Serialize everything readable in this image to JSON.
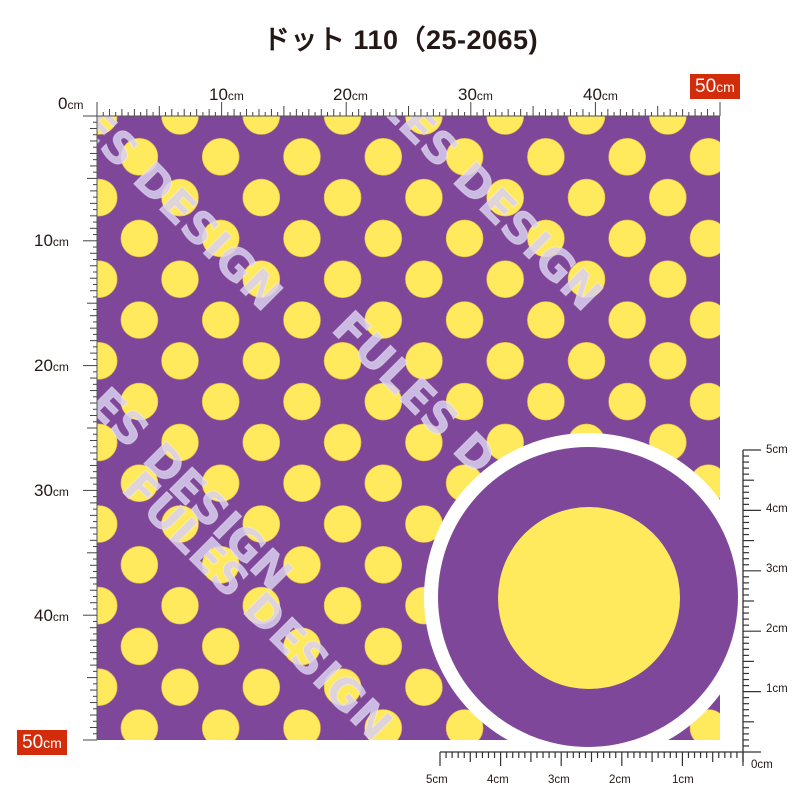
{
  "title": "ドット110（25-2065)",
  "title_display": "ドット 110（25-2065)",
  "pattern": {
    "name": "ドット110",
    "code": "25-2065",
    "background_color": "#7f479a",
    "dot_color": "#ffe95c",
    "watermark_text": "FULES DESIGN",
    "watermark_color": "#d8d0ee"
  },
  "top_ruler": {
    "labels": [
      {
        "value": "0",
        "unit": "cm"
      },
      {
        "value": "10",
        "unit": "cm"
      },
      {
        "value": "20",
        "unit": "cm"
      },
      {
        "value": "30",
        "unit": "cm"
      },
      {
        "value": "40",
        "unit": "cm"
      }
    ],
    "end_badge": {
      "value": "50",
      "unit": "cm"
    }
  },
  "left_ruler": {
    "labels": [
      {
        "value": "10",
        "unit": "cm"
      },
      {
        "value": "20",
        "unit": "cm"
      },
      {
        "value": "30",
        "unit": "cm"
      },
      {
        "value": "40",
        "unit": "cm"
      }
    ],
    "end_badge": {
      "value": "50",
      "unit": "cm"
    }
  },
  "detail_right_ruler": {
    "labels": [
      "5cm",
      "4cm",
      "3cm",
      "2cm",
      "1cm",
      "0cm"
    ]
  },
  "detail_bottom_ruler": {
    "labels": [
      "5cm",
      "4cm",
      "3cm",
      "2cm",
      "1cm"
    ]
  },
  "detail_view": {
    "ring_color": "#ffffff",
    "background_color": "#7f479a",
    "dot_color": "#ffe95c"
  }
}
